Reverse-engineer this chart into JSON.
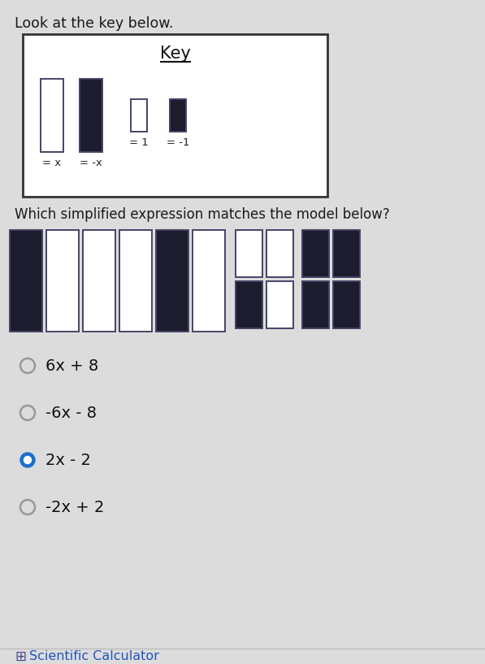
{
  "bg_color": "#dcdcdc",
  "key_bg": "#ffffff",
  "key_border": "#333333",
  "title_text": "Look at the key below.",
  "key_title": "Key",
  "question_text": "Which simplified expression matches the model below?",
  "options_raw": [
    "6x+8",
    "-6x-8",
    "2x-2",
    "-2x+2"
  ],
  "options_display": [
    "6x + 8",
    "-6x - 8",
    "2x - 2",
    "-2x + 2"
  ],
  "selected_option": 2,
  "dark_color": "#1c1c2e",
  "white_fill": "#ffffff",
  "border_color": "#444466",
  "answer_fill": "#1a6fcc",
  "unselected_stroke": "#999999",
  "footer_text": "Scientific Calculator",
  "footer_color": "#2255bb"
}
